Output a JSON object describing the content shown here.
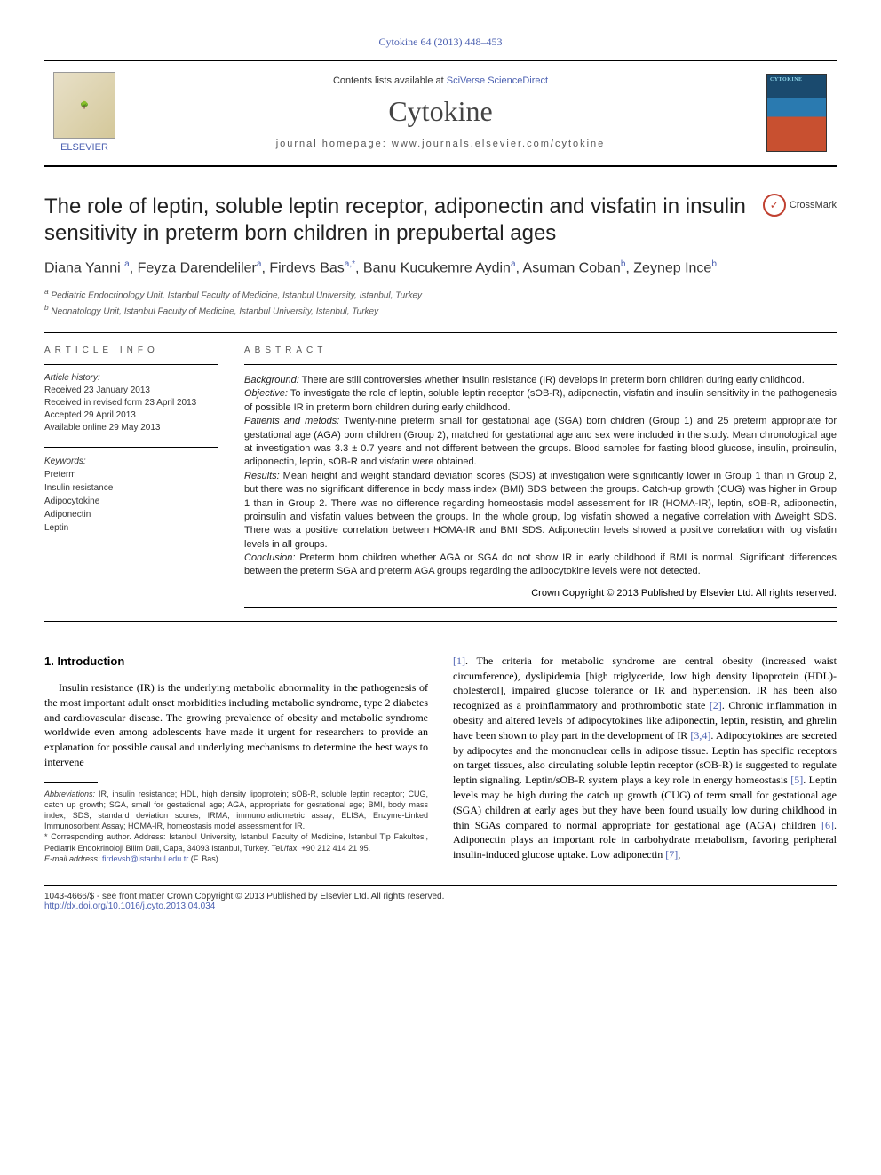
{
  "citation": "Cytokine 64 (2013) 448–453",
  "header": {
    "contents_prefix": "Contents lists available at ",
    "contents_link": "SciVerse ScienceDirect",
    "journal_title": "Cytokine",
    "homepage_prefix": "journal homepage: ",
    "homepage_url": "www.journals.elsevier.com/cytokine",
    "publisher": "ELSEVIER"
  },
  "crossmark_label": "CrossMark",
  "paper_title": "The role of leptin, soluble leptin receptor, adiponectin and visfatin in insulin sensitivity in preterm born children in prepubertal ages",
  "authors_html": "Diana Yanni <sup>a</sup>, Feyza Darendeliler<sup>a</sup>, Firdevs Bas<sup>a,*</sup>, Banu Kucukemre Aydin<sup>a</sup>, Asuman Coban<sup>b</sup>, Zeynep Ince<sup>b</sup>",
  "affiliations": [
    {
      "marker": "a",
      "text": "Pediatric Endocrinology Unit, Istanbul Faculty of Medicine, Istanbul University, Istanbul, Turkey"
    },
    {
      "marker": "b",
      "text": "Neonatology Unit, Istanbul Faculty of Medicine, Istanbul University, Istanbul, Turkey"
    }
  ],
  "article_info": {
    "section_label": "ARTICLE INFO",
    "history_label": "Article history:",
    "history": [
      "Received 23 January 2013",
      "Received in revised form 23 April 2013",
      "Accepted 29 April 2013",
      "Available online 29 May 2013"
    ],
    "keywords_label": "Keywords:",
    "keywords": [
      "Preterm",
      "Insulin resistance",
      "Adipocytokine",
      "Adiponectin",
      "Leptin"
    ]
  },
  "abstract": {
    "section_label": "ABSTRACT",
    "paragraphs": [
      {
        "head": "Background:",
        "text": " There are still controversies whether insulin resistance (IR) develops in preterm born children during early childhood."
      },
      {
        "head": "Objective:",
        "text": " To investigate the role of leptin, soluble leptin receptor (sOB-R), adiponectin, visfatin and insulin sensitivity in the pathogenesis of possible IR in preterm born children during early childhood."
      },
      {
        "head": "Patients and metods:",
        "text": " Twenty-nine preterm small for gestational age (SGA) born children (Group 1) and 25 preterm appropriate for gestational age (AGA) born children (Group 2), matched for gestational age and sex were included in the study. Mean chronological age at investigation was 3.3 ± 0.7 years and not different between the groups. Blood samples for fasting blood glucose, insulin, proinsulin, adiponectin, leptin, sOB-R and visfatin were obtained."
      },
      {
        "head": "Results:",
        "text": " Mean height and weight standard deviation scores (SDS) at investigation were significantly lower in Group 1 than in Group 2, but there was no significant difference in body mass index (BMI) SDS between the groups. Catch-up growth (CUG) was higher in Group 1 than in Group 2. There was no difference regarding homeostasis model assessment for IR (HOMA-IR), leptin, sOB-R, adiponectin, proinsulin and visfatin values between the groups. In the whole group, log visfatin showed a negative correlation with Δweight SDS. There was a positive correlation between HOMA-IR and BMI SDS. Adiponectin levels showed a positive correlation with log visfatin levels in all groups."
      },
      {
        "head": "Conclusion:",
        "text": " Preterm born children whether AGA or SGA do not show IR in early childhood if BMI is normal. Significant differences between the preterm SGA and preterm AGA groups regarding the adipocytokine levels were not detected."
      }
    ],
    "copyright": "Crown Copyright © 2013 Published by Elsevier Ltd. All rights reserved."
  },
  "intro": {
    "heading": "1. Introduction",
    "col1_indent": "Insulin resistance (IR) is the underlying metabolic abnormality in the pathogenesis of the most important adult onset morbidities including metabolic syndrome, type 2 diabetes and cardiovascular disease. The growing prevalence of obesity and metabolic syndrome worldwide even among adolescents have made it urgent for researchers to provide an explanation for possible causal and underlying mechanisms to determine the best ways to intervene",
    "col2": "[1]. The criteria for metabolic syndrome are central obesity (increased waist circumference), dyslipidemia [high triglyceride, low high density lipoprotein (HDL)-cholesterol], impaired glucose tolerance or IR and hypertension. IR has been also recognized as a proinflammatory and prothrombotic state [2]. Chronic inflammation in obesity and altered levels of adipocytokines like adiponectin, leptin, resistin, and ghrelin have been shown to play part in the development of IR [3,4]. Adipocytokines are secreted by adipocytes and the mononuclear cells in adipose tissue. Leptin has specific receptors on target tissues, also circulating soluble leptin receptor (sOB-R) is suggested to regulate leptin signaling. Leptin/sOB-R system plays a key role in energy homeostasis [5]. Leptin levels may be high during the catch up growth (CUG) of term small for gestational age (SGA) children at early ages but they have been found usually low during childhood in thin SGAs compared to normal appropriate for gestational age (AGA) children [6]. Adiponectin plays an important role in carbohydrate metabolism, favoring peripheral insulin-induced glucose uptake. Low adiponectin [7],"
  },
  "footnotes": {
    "abbrev_label": "Abbreviations:",
    "abbrev_text": " IR, insulin resistance; HDL, high density lipoprotein; sOB-R, soluble leptin receptor; CUG, catch up growth; SGA, small for gestational age; AGA, appropriate for gestational age; BMI, body mass index; SDS, standard deviation scores; IRMA, immunoradiometric assay; ELISA, Enzyme-Linked Immunosorbent Assay; HOMA-IR, homeostasis model assessment for IR.",
    "corr_label": "* Corresponding author.",
    "corr_text": " Address: Istanbul University, Istanbul Faculty of Medicine, Istanbul Tip Fakultesi, Pediatrik Endokrinoloji Bilim Dali, Capa, 34093 Istanbul, Turkey. Tel./fax: +90 212 414 21 95.",
    "email_label": "E-mail address:",
    "email": "firdevsb@istanbul.edu.tr",
    "email_suffix": " (F. Bas)."
  },
  "bottom": {
    "line1": "1043-4666/$ - see front matter Crown Copyright © 2013 Published by Elsevier Ltd. All rights reserved.",
    "doi": "http://dx.doi.org/10.1016/j.cyto.2013.04.034"
  },
  "colors": {
    "link": "#4a5fb0",
    "crossmark_ring": "#c04030",
    "body_text": "#000000",
    "muted": "#555555",
    "background": "#ffffff"
  },
  "fonts": {
    "serif": "Times New Roman / Georgia",
    "sans": "Arial",
    "title_size_pt": 24,
    "journal_title_size_pt": 32,
    "body_size_pt": 12,
    "abstract_size_pt": 11,
    "info_size_pt": 10,
    "footnote_size_pt": 9
  }
}
